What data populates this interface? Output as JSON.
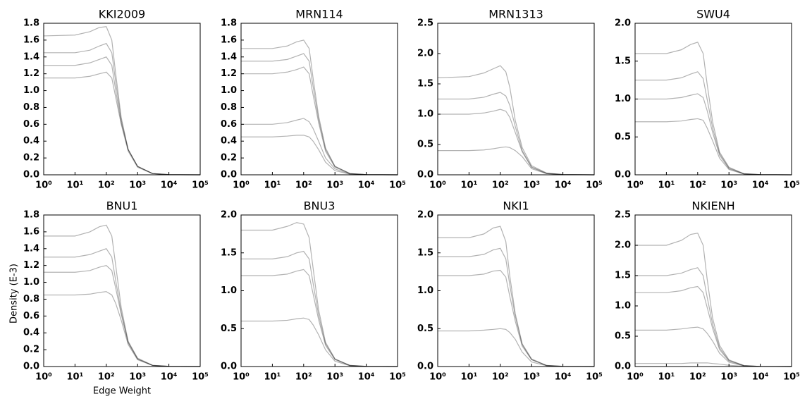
{
  "chart_data": [
    {
      "type": "line",
      "title": "KKI2009",
      "xscale": "log",
      "grid": false,
      "color": "#000000",
      "opacity": 0.3,
      "x": [
        1,
        10,
        30,
        60,
        100,
        150,
        200,
        300,
        500,
        1000,
        3000,
        10000,
        100000
      ],
      "xlim": [
        1,
        100000
      ],
      "xticks": [
        {
          "value": 1,
          "label": "10⁰"
        },
        {
          "value": 10,
          "label": "10¹"
        },
        {
          "value": 100,
          "label": "10²"
        },
        {
          "value": 1000,
          "label": "10³"
        },
        {
          "value": 10000,
          "label": "10⁴"
        },
        {
          "value": 100000,
          "label": "10⁵"
        }
      ],
      "ylim": [
        0,
        1.8
      ],
      "yticks": [
        {
          "value": 0,
          "label": "0.0"
        },
        0.2,
        0.4,
        0.6,
        0.8,
        {
          "value": 1,
          "label": "1.0"
        },
        1.2,
        1.4,
        1.6,
        1.8
      ],
      "series": [
        {
          "values": [
            1.65,
            1.66,
            1.7,
            1.75,
            1.76,
            1.6,
            1.2,
            0.68,
            0.3,
            0.1,
            0.015,
            0.002,
            0
          ]
        },
        {
          "values": [
            1.45,
            1.45,
            1.48,
            1.53,
            1.56,
            1.45,
            1.1,
            0.65,
            0.3,
            0.1,
            0.015,
            0.002,
            0
          ]
        },
        {
          "values": [
            1.3,
            1.3,
            1.33,
            1.37,
            1.4,
            1.3,
            1.0,
            0.62,
            0.3,
            0.1,
            0.015,
            0.002,
            0
          ]
        },
        {
          "values": [
            1.15,
            1.15,
            1.17,
            1.2,
            1.22,
            1.15,
            0.92,
            0.6,
            0.28,
            0.09,
            0.013,
            0.002,
            0
          ]
        }
      ]
    },
    {
      "type": "line",
      "title": "MRN114",
      "xscale": "log",
      "grid": false,
      "color": "#000000",
      "opacity": 0.3,
      "x": [
        1,
        10,
        30,
        60,
        100,
        150,
        200,
        300,
        500,
        1000,
        3000,
        10000,
        100000
      ],
      "xlim": [
        1,
        100000
      ],
      "xticks": [
        {
          "value": 1,
          "label": "10⁰"
        },
        {
          "value": 10,
          "label": "10¹"
        },
        {
          "value": 100,
          "label": "10²"
        },
        {
          "value": 1000,
          "label": "10³"
        },
        {
          "value": 10000,
          "label": "10⁴"
        },
        {
          "value": 100000,
          "label": "10⁵"
        }
      ],
      "ylim": [
        0,
        1.8
      ],
      "yticks": [
        {
          "value": 0,
          "label": "0.0"
        },
        0.2,
        0.4,
        0.6,
        0.8,
        {
          "value": 1,
          "label": "1.0"
        },
        1.2,
        1.4,
        1.6,
        1.8
      ],
      "series": [
        {
          "values": [
            1.5,
            1.5,
            1.53,
            1.58,
            1.6,
            1.5,
            1.15,
            0.7,
            0.32,
            0.1,
            0.015,
            0.002,
            0
          ]
        },
        {
          "values": [
            1.35,
            1.35,
            1.37,
            1.41,
            1.44,
            1.35,
            1.05,
            0.66,
            0.3,
            0.1,
            0.015,
            0.002,
            0
          ]
        },
        {
          "values": [
            1.2,
            1.2,
            1.22,
            1.25,
            1.28,
            1.2,
            0.95,
            0.62,
            0.28,
            0.09,
            0.013,
            0.002,
            0
          ]
        },
        {
          "values": [
            0.6,
            0.6,
            0.62,
            0.65,
            0.67,
            0.63,
            0.55,
            0.4,
            0.2,
            0.07,
            0.01,
            0.002,
            0
          ]
        },
        {
          "values": [
            0.45,
            0.45,
            0.46,
            0.47,
            0.47,
            0.45,
            0.4,
            0.3,
            0.15,
            0.05,
            0.008,
            0.001,
            0
          ]
        }
      ]
    },
    {
      "type": "line",
      "title": "MRN1313",
      "xscale": "log",
      "grid": false,
      "color": "#000000",
      "opacity": 0.3,
      "x": [
        1,
        10,
        30,
        60,
        100,
        150,
        200,
        300,
        500,
        1000,
        3000,
        10000,
        100000
      ],
      "xlim": [
        1,
        100000
      ],
      "xticks": [
        {
          "value": 1,
          "label": "10⁰"
        },
        {
          "value": 10,
          "label": "10¹"
        },
        {
          "value": 100,
          "label": "10²"
        },
        {
          "value": 1000,
          "label": "10³"
        },
        {
          "value": 10000,
          "label": "10⁴"
        },
        {
          "value": 100000,
          "label": "10⁵"
        }
      ],
      "ylim": [
        0,
        2.5
      ],
      "yticks": [
        {
          "value": 0,
          "label": "0.0"
        },
        0.5,
        {
          "value": 1,
          "label": "1.0"
        },
        1.5,
        {
          "value": 2,
          "label": "2.0"
        },
        2.5
      ],
      "series": [
        {
          "values": [
            1.6,
            1.62,
            1.68,
            1.75,
            1.8,
            1.7,
            1.45,
            0.9,
            0.45,
            0.15,
            0.03,
            0.005,
            0
          ]
        },
        {
          "values": [
            1.25,
            1.25,
            1.28,
            1.33,
            1.36,
            1.3,
            1.15,
            0.8,
            0.4,
            0.13,
            0.025,
            0.004,
            0
          ]
        },
        {
          "values": [
            1.0,
            1.0,
            1.02,
            1.05,
            1.08,
            1.05,
            0.95,
            0.7,
            0.38,
            0.12,
            0.02,
            0.003,
            0
          ]
        },
        {
          "values": [
            0.4,
            0.4,
            0.41,
            0.43,
            0.45,
            0.46,
            0.45,
            0.4,
            0.3,
            0.1,
            0.02,
            0.003,
            0
          ]
        }
      ]
    },
    {
      "type": "line",
      "title": "SWU4",
      "xscale": "log",
      "grid": false,
      "color": "#000000",
      "opacity": 0.3,
      "x": [
        1,
        10,
        30,
        60,
        100,
        150,
        200,
        300,
        500,
        1000,
        3000,
        10000,
        100000
      ],
      "xlim": [
        1,
        100000
      ],
      "xticks": [
        {
          "value": 1,
          "label": "10⁰"
        },
        {
          "value": 10,
          "label": "10¹"
        },
        {
          "value": 100,
          "label": "10²"
        },
        {
          "value": 1000,
          "label": "10³"
        },
        {
          "value": 10000,
          "label": "10⁴"
        },
        {
          "value": 100000,
          "label": "10⁵"
        }
      ],
      "ylim": [
        0,
        2
      ],
      "yticks": [
        {
          "value": 0,
          "label": "0.0"
        },
        0.5,
        {
          "value": 1,
          "label": "1.0"
        },
        1.5,
        {
          "value": 2,
          "label": "2.0"
        }
      ],
      "series": [
        {
          "values": [
            1.6,
            1.6,
            1.65,
            1.72,
            1.75,
            1.6,
            1.2,
            0.7,
            0.3,
            0.1,
            0.015,
            0.002,
            0
          ]
        },
        {
          "values": [
            1.25,
            1.25,
            1.28,
            1.33,
            1.36,
            1.27,
            1.0,
            0.62,
            0.28,
            0.09,
            0.013,
            0.002,
            0
          ]
        },
        {
          "values": [
            1.0,
            1.0,
            1.02,
            1.05,
            1.07,
            1.02,
            0.85,
            0.56,
            0.26,
            0.08,
            0.012,
            0.002,
            0
          ]
        },
        {
          "values": [
            0.7,
            0.7,
            0.71,
            0.73,
            0.74,
            0.72,
            0.62,
            0.45,
            0.22,
            0.07,
            0.01,
            0.002,
            0
          ]
        }
      ]
    },
    {
      "type": "line",
      "title": "BNU1",
      "xscale": "log",
      "grid": false,
      "color": "#000000",
      "opacity": 0.3,
      "xlabel": "Edge Weight",
      "ylabel": "Density (E-3)",
      "x": [
        1,
        10,
        30,
        60,
        100,
        150,
        200,
        300,
        500,
        1000,
        3000,
        10000,
        100000
      ],
      "xlim": [
        1,
        100000
      ],
      "xticks": [
        {
          "value": 1,
          "label": "10⁰"
        },
        {
          "value": 10,
          "label": "10¹"
        },
        {
          "value": 100,
          "label": "10²"
        },
        {
          "value": 1000,
          "label": "10³"
        },
        {
          "value": 10000,
          "label": "10⁴"
        },
        {
          "value": 100000,
          "label": "10⁵"
        }
      ],
      "ylim": [
        0,
        1.8
      ],
      "yticks": [
        {
          "value": 0,
          "label": "0.0"
        },
        0.2,
        0.4,
        0.6,
        0.8,
        {
          "value": 1,
          "label": "1.0"
        },
        1.2,
        1.4,
        1.6,
        1.8
      ],
      "series": [
        {
          "values": [
            1.55,
            1.55,
            1.6,
            1.66,
            1.68,
            1.55,
            1.2,
            0.7,
            0.3,
            0.1,
            0.015,
            0.002,
            0
          ]
        },
        {
          "values": [
            1.3,
            1.3,
            1.33,
            1.37,
            1.4,
            1.3,
            1.02,
            0.65,
            0.29,
            0.09,
            0.014,
            0.002,
            0
          ]
        },
        {
          "values": [
            1.12,
            1.12,
            1.14,
            1.18,
            1.2,
            1.14,
            0.93,
            0.62,
            0.28,
            0.09,
            0.013,
            0.002,
            0
          ]
        },
        {
          "values": [
            0.85,
            0.85,
            0.86,
            0.88,
            0.89,
            0.85,
            0.75,
            0.55,
            0.26,
            0.08,
            0.012,
            0.002,
            0
          ]
        }
      ]
    },
    {
      "type": "line",
      "title": "BNU3",
      "xscale": "log",
      "grid": false,
      "color": "#000000",
      "opacity": 0.3,
      "x": [
        1,
        10,
        30,
        60,
        100,
        150,
        200,
        300,
        500,
        1000,
        3000,
        10000,
        100000
      ],
      "xlim": [
        1,
        100000
      ],
      "xticks": [
        {
          "value": 1,
          "label": "10⁰"
        },
        {
          "value": 10,
          "label": "10¹"
        },
        {
          "value": 100,
          "label": "10²"
        },
        {
          "value": 1000,
          "label": "10³"
        },
        {
          "value": 10000,
          "label": "10⁴"
        },
        {
          "value": 100000,
          "label": "10⁵"
        }
      ],
      "ylim": [
        0,
        2
      ],
      "yticks": [
        {
          "value": 0,
          "label": "0.0"
        },
        0.5,
        {
          "value": 1,
          "label": "1.0"
        },
        1.5,
        {
          "value": 2,
          "label": "2.0"
        }
      ],
      "series": [
        {
          "values": [
            1.8,
            1.8,
            1.85,
            1.9,
            1.88,
            1.7,
            1.3,
            0.75,
            0.32,
            0.1,
            0.015,
            0.002,
            0
          ]
        },
        {
          "values": [
            1.42,
            1.42,
            1.45,
            1.5,
            1.52,
            1.42,
            1.1,
            0.68,
            0.3,
            0.1,
            0.015,
            0.002,
            0
          ]
        },
        {
          "values": [
            1.2,
            1.2,
            1.22,
            1.26,
            1.28,
            1.2,
            0.96,
            0.62,
            0.28,
            0.09,
            0.013,
            0.002,
            0
          ]
        },
        {
          "values": [
            0.6,
            0.6,
            0.61,
            0.63,
            0.64,
            0.62,
            0.55,
            0.42,
            0.22,
            0.07,
            0.01,
            0.002,
            0
          ]
        }
      ]
    },
    {
      "type": "line",
      "title": "NKI1",
      "xscale": "log",
      "grid": false,
      "color": "#000000",
      "opacity": 0.3,
      "x": [
        1,
        10,
        30,
        60,
        100,
        150,
        200,
        300,
        500,
        1000,
        3000,
        10000,
        100000
      ],
      "xlim": [
        1,
        100000
      ],
      "xticks": [
        {
          "value": 1,
          "label": "10⁰"
        },
        {
          "value": 10,
          "label": "10¹"
        },
        {
          "value": 100,
          "label": "10²"
        },
        {
          "value": 1000,
          "label": "10³"
        },
        {
          "value": 10000,
          "label": "10⁴"
        },
        {
          "value": 100000,
          "label": "10⁵"
        }
      ],
      "ylim": [
        0,
        2
      ],
      "yticks": [
        {
          "value": 0,
          "label": "0.0"
        },
        0.5,
        {
          "value": 1,
          "label": "1.0"
        },
        1.5,
        {
          "value": 2,
          "label": "2.0"
        }
      ],
      "series": [
        {
          "values": [
            1.7,
            1.7,
            1.75,
            1.83,
            1.85,
            1.65,
            1.2,
            0.7,
            0.3,
            0.1,
            0.015,
            0.002,
            0
          ]
        },
        {
          "values": [
            1.45,
            1.45,
            1.48,
            1.54,
            1.56,
            1.42,
            1.08,
            0.66,
            0.29,
            0.09,
            0.014,
            0.002,
            0
          ]
        },
        {
          "values": [
            1.2,
            1.2,
            1.22,
            1.26,
            1.27,
            1.18,
            0.93,
            0.6,
            0.27,
            0.09,
            0.013,
            0.002,
            0
          ]
        },
        {
          "values": [
            0.47,
            0.47,
            0.48,
            0.49,
            0.5,
            0.49,
            0.45,
            0.36,
            0.19,
            0.06,
            0.01,
            0.001,
            0
          ]
        }
      ]
    },
    {
      "type": "line",
      "title": "NKIENH",
      "xscale": "log",
      "grid": false,
      "color": "#000000",
      "opacity": 0.3,
      "x": [
        1,
        10,
        30,
        60,
        100,
        150,
        200,
        300,
        500,
        1000,
        3000,
        10000,
        100000
      ],
      "xlim": [
        1,
        100000
      ],
      "xticks": [
        {
          "value": 1,
          "label": "10⁰"
        },
        {
          "value": 10,
          "label": "10¹"
        },
        {
          "value": 100,
          "label": "10²"
        },
        {
          "value": 1000,
          "label": "10³"
        },
        {
          "value": 10000,
          "label": "10⁴"
        },
        {
          "value": 100000,
          "label": "10⁵"
        }
      ],
      "ylim": [
        0,
        2.5
      ],
      "yticks": [
        {
          "value": 0,
          "label": "0.0"
        },
        0.5,
        {
          "value": 1,
          "label": "1.0"
        },
        1.5,
        {
          "value": 2,
          "label": "2.0"
        },
        2.5
      ],
      "series": [
        {
          "values": [
            2.0,
            2.0,
            2.08,
            2.18,
            2.2,
            2.0,
            1.45,
            0.8,
            0.35,
            0.11,
            0.016,
            0.002,
            0
          ]
        },
        {
          "values": [
            1.5,
            1.5,
            1.54,
            1.6,
            1.63,
            1.5,
            1.15,
            0.7,
            0.31,
            0.1,
            0.015,
            0.002,
            0
          ]
        },
        {
          "values": [
            1.22,
            1.22,
            1.25,
            1.3,
            1.32,
            1.22,
            0.98,
            0.63,
            0.28,
            0.09,
            0.013,
            0.002,
            0
          ]
        },
        {
          "values": [
            0.6,
            0.6,
            0.62,
            0.64,
            0.65,
            0.62,
            0.55,
            0.42,
            0.22,
            0.07,
            0.01,
            0.002,
            0
          ]
        },
        {
          "values": [
            0.05,
            0.05,
            0.05,
            0.06,
            0.06,
            0.06,
            0.06,
            0.05,
            0.04,
            0.02,
            0.005,
            0.001,
            0
          ]
        }
      ]
    }
  ]
}
